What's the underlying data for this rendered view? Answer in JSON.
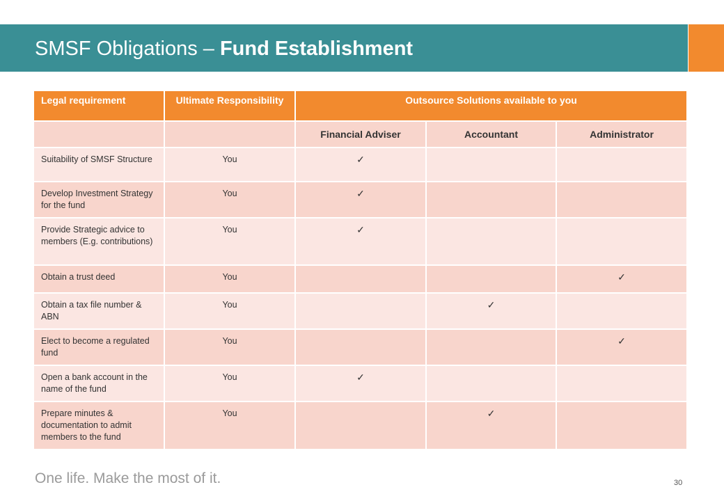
{
  "slide": {
    "title_prefix": "SMSF Obligations – ",
    "title_bold": "Fund Establishment",
    "tagline": "One life. Make the most of it.",
    "page_number": "30"
  },
  "colors": {
    "title_bar": "#3a8f95",
    "accent": "#f28a2e",
    "row_light": "#fbe6e2",
    "row_dark": "#f8d5cc"
  },
  "table": {
    "headers": {
      "legal": "Legal requirement",
      "ultimate": "Ultimate Responsibility",
      "outsource": "Outsource Solutions available to you",
      "financial_adviser": "Financial Adviser",
      "accountant": "Accountant",
      "administrator": "Administrator"
    },
    "check_mark": "✓",
    "rows": [
      {
        "requirement": "Suitability of SMSF Structure",
        "responsibility": "You",
        "provider": "financial_adviser"
      },
      {
        "requirement": "Develop Investment Strategy for the fund",
        "responsibility": "You",
        "provider": "financial_adviser"
      },
      {
        "requirement": "Provide Strategic advice to members (E.g. contributions)",
        "responsibility": "You",
        "provider": "financial_adviser"
      },
      {
        "requirement": "Obtain a trust deed",
        "responsibility": "You",
        "provider": "administrator"
      },
      {
        "requirement": "Obtain a tax file number & ABN",
        "responsibility": "You",
        "provider": "accountant"
      },
      {
        "requirement": "Elect to become a regulated fund",
        "responsibility": "You",
        "provider": "administrator"
      },
      {
        "requirement": "Open a bank account in the name of the fund",
        "responsibility": "You",
        "provider": "financial_adviser"
      },
      {
        "requirement": "Prepare minutes & documentation to admit members to the fund",
        "responsibility": "You",
        "provider": "accountant"
      }
    ]
  }
}
